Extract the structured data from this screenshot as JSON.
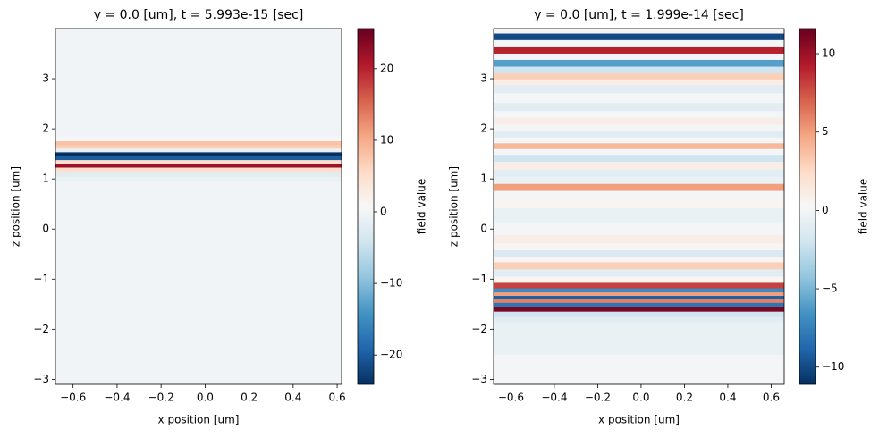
{
  "chart_data": [
    {
      "type": "heatmap",
      "title": "y = 0.0 [um], t = 5.993e-15 [sec]",
      "xlabel": "x position [um]",
      "ylabel": "z position [um]",
      "colorbar_label": "field value",
      "colormap": "RdBu_r",
      "xlim": [
        -0.68,
        0.62
      ],
      "ylim": [
        -3.1,
        4.0
      ],
      "xticks": [
        {
          "value": -0.6,
          "label": "−0.6"
        },
        {
          "value": -0.4,
          "label": "−0.4"
        },
        {
          "value": -0.2,
          "label": "−0.2"
        },
        {
          "value": 0,
          "label": "0.0"
        },
        0.2,
        0.4,
        0.6
      ],
      "yticks": [
        {
          "value": -3,
          "label": "−3"
        },
        {
          "value": -2,
          "label": "−2"
        },
        {
          "value": -1,
          "label": "−1"
        },
        0,
        1,
        2,
        3
      ],
      "clim": [
        -24.1,
        25.6
      ],
      "cticks": [
        {
          "value": -20,
          "label": "−20"
        },
        {
          "value": -10,
          "label": "−10"
        },
        0,
        10,
        20
      ],
      "z": [
        -3.1,
        0.9,
        1.0,
        1.1,
        1.2,
        1.27,
        1.35,
        1.42,
        1.5,
        1.58,
        1.65,
        1.72,
        1.8,
        1.9,
        4.0
      ],
      "values": [
        0,
        0,
        -1,
        -2,
        5,
        22,
        5,
        -20,
        -25,
        -1,
        7,
        8,
        1,
        0,
        0
      ]
    },
    {
      "type": "heatmap",
      "title": "y = 0.0 [um], t = 1.999e-14 [sec]",
      "xlabel": "x position [um]",
      "ylabel": "z position [um]",
      "colorbar_label": "field value",
      "colormap": "RdBu_r",
      "xlim": [
        -0.68,
        0.66
      ],
      "ylim": [
        -3.1,
        4.0
      ],
      "xticks": [
        {
          "value": -0.6,
          "label": "−0.6"
        },
        {
          "value": -0.4,
          "label": "−0.4"
        },
        {
          "value": -0.2,
          "label": "−0.2"
        },
        {
          "value": 0,
          "label": "0.0"
        },
        0.2,
        0.4,
        0.6
      ],
      "yticks": [
        {
          "value": -3,
          "label": "−3"
        },
        {
          "value": -2,
          "label": "−2"
        },
        {
          "value": -1,
          "label": "−1"
        },
        0,
        1,
        2,
        3
      ],
      "clim": [
        -11.1,
        11.6
      ],
      "cticks": [
        {
          "value": -10,
          "label": "−10"
        },
        {
          "value": -5,
          "label": "−5"
        },
        0,
        5,
        10
      ],
      "z": [
        -3.1,
        -1.9,
        -1.8,
        -1.7,
        -1.58,
        -1.5,
        -1.43,
        -1.36,
        -1.29,
        -1.22,
        -1.13,
        -1.0,
        -0.88,
        -0.71,
        -0.6,
        -0.48,
        -0.35,
        -0.21,
        0.0,
        0.29,
        0.55,
        0.7,
        0.84,
        0.98,
        1.12,
        1.27,
        1.43,
        1.55,
        1.66,
        1.78,
        1.89,
        2.03,
        2.16,
        2.3,
        2.43,
        2.62,
        2.82,
        2.94,
        3.05,
        3.18,
        3.32,
        3.45,
        3.57,
        3.7,
        3.86,
        3.96
      ],
      "values": [
        0,
        -0.5,
        -1,
        -2,
        11,
        -8,
        6,
        -9,
        5,
        -7,
        8,
        0.5,
        -1,
        3,
        0.5,
        -1.5,
        0.5,
        1,
        0,
        -0.5,
        0.5,
        0,
        5,
        -0.5,
        -1,
        1,
        -2,
        0,
        4,
        0,
        -1,
        0,
        1,
        0,
        -1,
        0,
        -1,
        1,
        3,
        -2,
        -6,
        0,
        9,
        0,
        -10,
        0
      ]
    }
  ]
}
